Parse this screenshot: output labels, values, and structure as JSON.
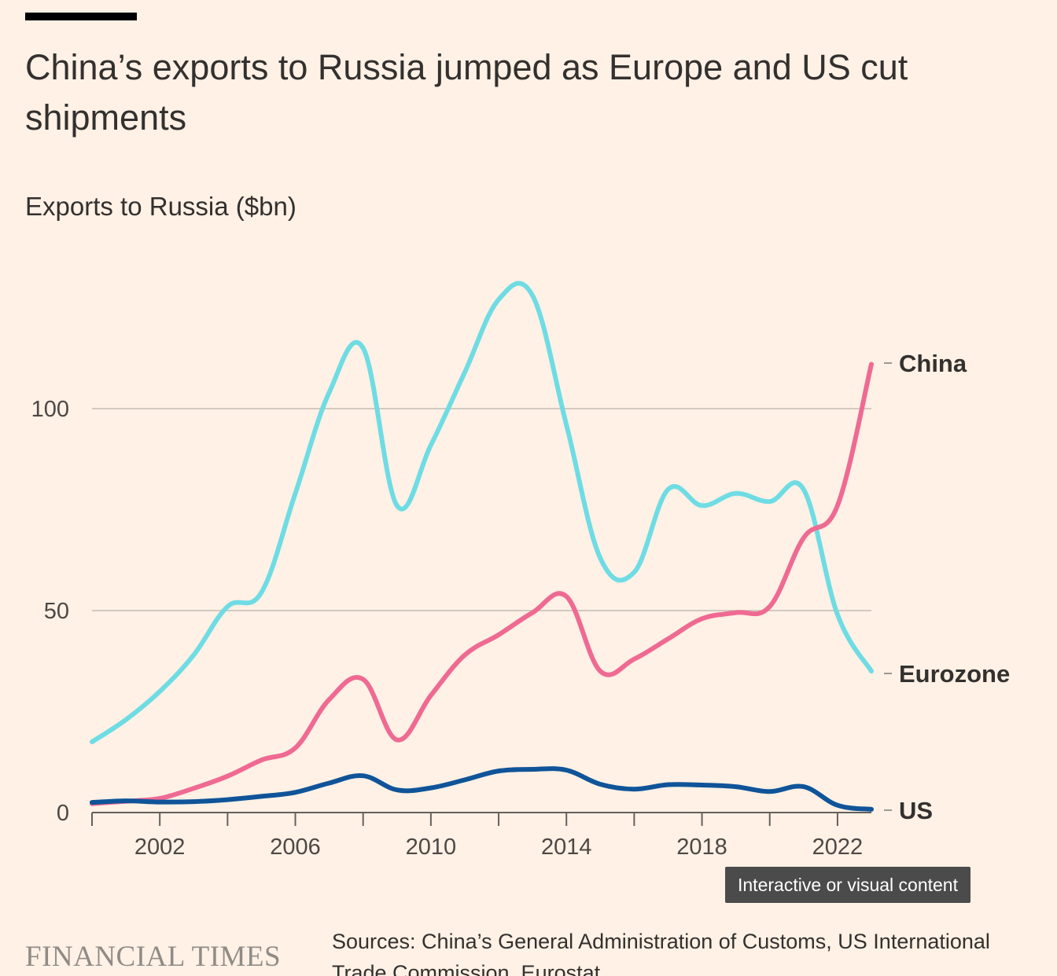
{
  "header": {
    "title": "China’s exports to Russia jumped as Europe and US cut shipments",
    "subtitle": "Exports to Russia ($bn)"
  },
  "chart_data": {
    "type": "line",
    "title": "China’s exports to Russia jumped as Europe and US cut shipments",
    "subtitle": "Exports to Russia ($bn)",
    "xlabel": "",
    "ylabel": "Exports to Russia ($bn)",
    "x": [
      2000,
      2001,
      2002,
      2003,
      2004,
      2005,
      2006,
      2007,
      2008,
      2009,
      2010,
      2011,
      2012,
      2013,
      2014,
      2015,
      2016,
      2017,
      2018,
      2019,
      2020,
      2021,
      2022,
      2023
    ],
    "xlim": [
      2000,
      2023
    ],
    "ylim": [
      0,
      130
    ],
    "x_ticks": [
      2002,
      2006,
      2010,
      2014,
      2018,
      2022
    ],
    "y_ticks": [
      0,
      50,
      100
    ],
    "grid": "horizontal",
    "legend": "direct labels at right end of lines",
    "series": [
      {
        "name": "Eurozone",
        "color": "#6fdce4",
        "values": [
          17.5,
          23,
          30,
          39,
          51,
          54.5,
          79,
          104,
          115,
          76,
          91,
          109,
          127,
          128,
          96,
          63,
          59.5,
          80,
          76,
          79,
          77,
          80,
          49,
          35
        ]
      },
      {
        "name": "China",
        "color": "#ef6a92",
        "values": [
          2.2,
          2.8,
          3.5,
          6,
          9,
          13,
          16,
          28,
          33,
          18,
          29,
          39,
          44,
          49.5,
          53.5,
          35,
          38,
          43,
          48,
          49.5,
          51,
          68,
          76,
          111
        ]
      },
      {
        "name": "US",
        "color": "#0f5499",
        "values": [
          2.5,
          2.9,
          2.6,
          2.7,
          3.2,
          4,
          5,
          7.3,
          9.1,
          5.6,
          6.1,
          8.1,
          10.3,
          10.7,
          10.5,
          7,
          5.8,
          6.9,
          6.8,
          6.4,
          5.2,
          6.4,
          1.8,
          0.8
        ]
      }
    ]
  },
  "badge": {
    "label": "Interactive or visual content"
  },
  "footer": {
    "brand": "FINANCIAL TIMES",
    "source": "Sources: China’s General Administration of Customs, US International Trade Commission, Eurostat"
  }
}
